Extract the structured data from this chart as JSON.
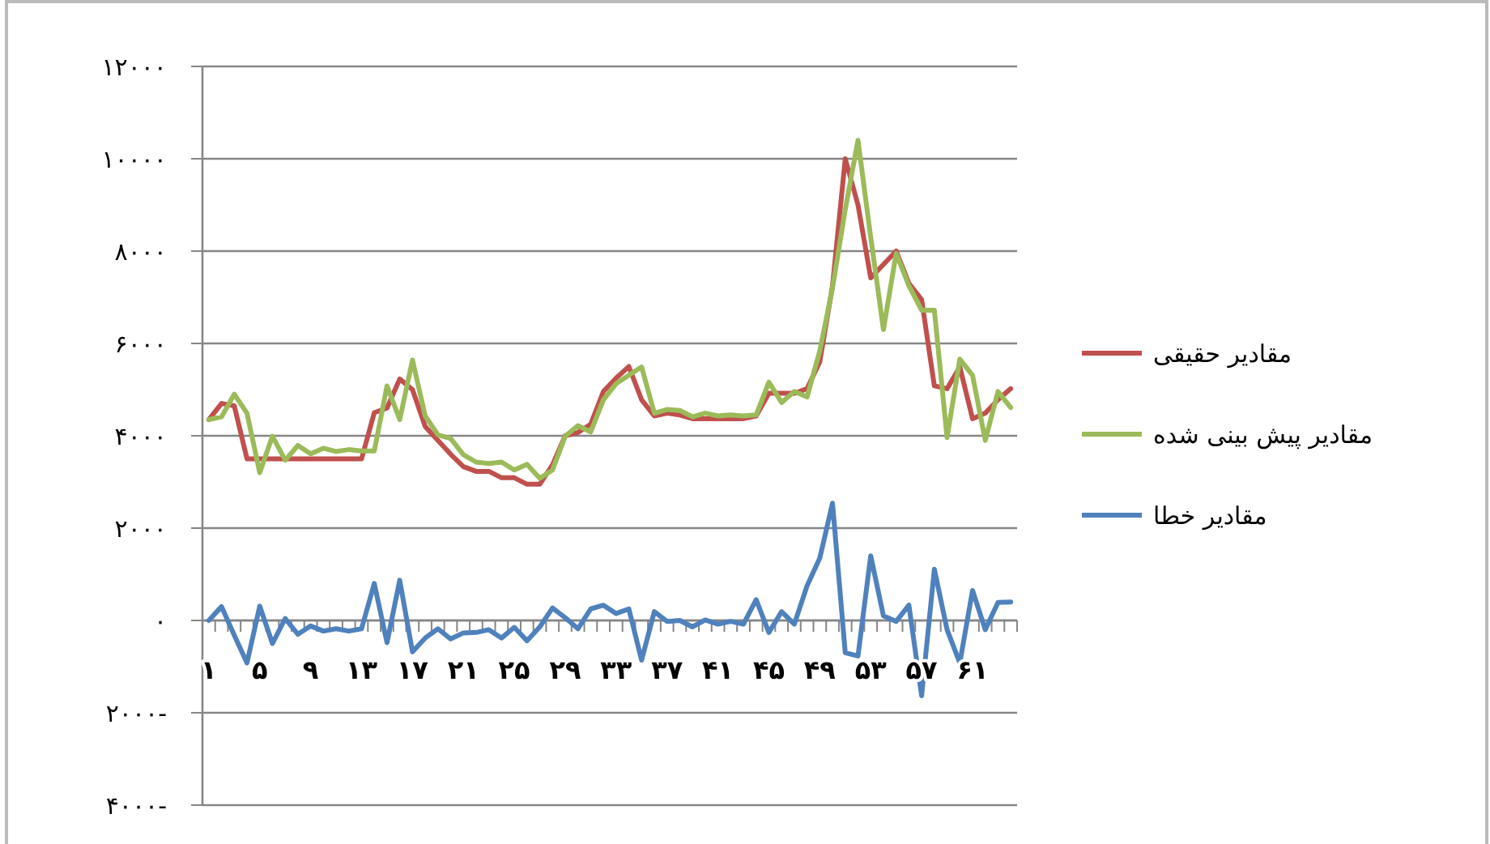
{
  "chart_data": {
    "type": "line",
    "categories": [
      "۱",
      null,
      null,
      null,
      "۵",
      null,
      null,
      null,
      "۹",
      null,
      null,
      null,
      "۱۳",
      null,
      null,
      null,
      "۱۷",
      null,
      null,
      null,
      "۲۱",
      null,
      null,
      null,
      "۲۵",
      null,
      null,
      null,
      "۲۹",
      null,
      null,
      null,
      "۳۳",
      null,
      null,
      null,
      "۳۷",
      null,
      null,
      null,
      "۴۱",
      null,
      null,
      null,
      "۴۵",
      null,
      null,
      null,
      "۴۹",
      null,
      null,
      null,
      "۵۳",
      null,
      null,
      null,
      "۵۷",
      null,
      null,
      null,
      "۶۱",
      null,
      null,
      null
    ],
    "series": [
      {
        "name": "مقادیر حقیقی",
        "color": "#c0504d",
        "values": [
          4350,
          4700,
          4650,
          3500,
          3500,
          3500,
          3500,
          3500,
          3500,
          3500,
          3500,
          3500,
          3500,
          4500,
          4600,
          5230,
          5000,
          4200,
          3900,
          3600,
          3330,
          3230,
          3230,
          3090,
          3090,
          2950,
          2950,
          3370,
          4000,
          4070,
          4250,
          4960,
          5250,
          5500,
          4780,
          4430,
          4490,
          4450,
          4370,
          4370,
          4370,
          4370,
          4370,
          4430,
          4920,
          4920,
          4920,
          5020,
          5600,
          7250,
          10000,
          9000,
          7420,
          7710,
          8000,
          7300,
          6950,
          5080,
          5020,
          5490,
          4370,
          4490,
          4780,
          5020
        ]
      },
      {
        "name": "مقادیر پیش بینی شده",
        "color": "#9bbb59",
        "values": [
          4350,
          4410,
          4900,
          4490,
          3200,
          3990,
          3470,
          3790,
          3610,
          3730,
          3660,
          3700,
          3670,
          3670,
          5080,
          4350,
          5640,
          4430,
          4020,
          3940,
          3590,
          3430,
          3400,
          3430,
          3260,
          3380,
          3080,
          3260,
          3990,
          4220,
          4080,
          4780,
          5130,
          5310,
          5490,
          4490,
          4570,
          4550,
          4410,
          4490,
          4430,
          4450,
          4430,
          4450,
          5160,
          4720,
          4960,
          4840,
          5840,
          7200,
          8900,
          10400,
          8300,
          6300,
          7950,
          7250,
          6720,
          6720,
          3960,
          5660,
          5310,
          3900,
          4960,
          4610
        ]
      },
      {
        "name": "مقادیر خطا",
        "color": "#4f81bd",
        "values": [
          0,
          300,
          -320,
          -920,
          310,
          -500,
          40,
          -300,
          -120,
          -230,
          -180,
          -230,
          -180,
          800,
          -480,
          870,
          -680,
          -380,
          -180,
          -400,
          -270,
          -260,
          -200,
          -380,
          -150,
          -440,
          -140,
          270,
          60,
          -180,
          250,
          330,
          150,
          250,
          -860,
          190,
          -20,
          0,
          -140,
          10,
          -80,
          -20,
          -80,
          450,
          -260,
          190,
          -80,
          750,
          1350,
          2540,
          -700,
          -770,
          1400,
          100,
          -20,
          330,
          -1630,
          1110,
          -200,
          -920,
          650,
          -200,
          390,
          400
        ]
      }
    ],
    "ylim": [
      -4000,
      12000
    ],
    "yticks": [
      {
        "value": 12000,
        "label": "۱۲۰۰۰"
      },
      {
        "value": 10000,
        "label": "۱۰۰۰۰"
      },
      {
        "value": 8000,
        "label": "۸۰۰۰"
      },
      {
        "value": 6000,
        "label": "۶۰۰۰"
      },
      {
        "value": 4000,
        "label": "۴۰۰۰"
      },
      {
        "value": 2000,
        "label": "۲۰۰۰"
      },
      {
        "value": 0,
        "label": "۰"
      },
      {
        "value": -2000,
        "label": "۲۰۰۰-"
      },
      {
        "value": -4000,
        "label": "۴۰۰۰-"
      }
    ],
    "grid": "y",
    "legend": "right",
    "marker": "none",
    "line_style": "solid"
  }
}
